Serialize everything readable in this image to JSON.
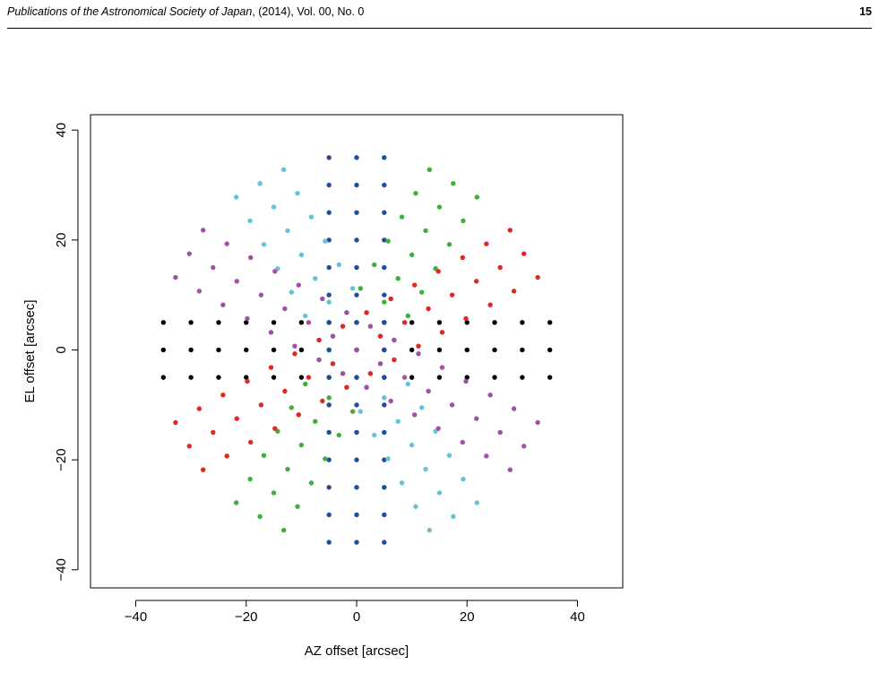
{
  "header": {
    "journal": "Publications of the Astronomical Society of Japan",
    "citation": ", (2014), Vol. 00, No. 0",
    "page": "15"
  },
  "chart_data": {
    "type": "scatter",
    "xlabel": "AZ offset [arcsec]",
    "ylabel": "EL offset [arcsec]",
    "xlim": [
      -48.2,
      48.2
    ],
    "ylim": [
      -43.3,
      42.8
    ],
    "xticks": [
      {
        "value": -40,
        "label": "−40"
      },
      {
        "value": -20,
        "label": "−20"
      },
      0,
      20,
      40
    ],
    "yticks": [
      {
        "value": -40,
        "label": "−40"
      },
      {
        "value": -20,
        "label": "−20"
      },
      0,
      20,
      40
    ],
    "series": [
      {
        "color": "#000000",
        "x": [
          -35,
          -30,
          -25,
          -20,
          -15,
          -10,
          -5,
          0,
          5,
          10,
          15,
          20,
          25,
          30,
          35,
          -35,
          -30,
          -25,
          -20,
          -15,
          -10,
          -5,
          0,
          5,
          10,
          15,
          20,
          25,
          30,
          35,
          -35,
          -30,
          -25,
          -20,
          -15,
          -10,
          -5,
          0,
          5,
          10,
          15,
          20,
          25,
          30,
          35
        ],
        "y": [
          0,
          0,
          0,
          0,
          0,
          0,
          0,
          0,
          0,
          0,
          0,
          0,
          0,
          0,
          0,
          -5,
          -5,
          -5,
          -5,
          -5,
          -5,
          -5,
          -5,
          -5,
          -5,
          -5,
          -5,
          -5,
          -5,
          -5,
          5,
          5,
          5,
          5,
          5,
          5,
          5,
          5,
          5,
          5,
          5,
          5,
          5,
          5,
          5
        ]
      },
      {
        "color": "#1f4e9a",
        "x": [
          0,
          0,
          0,
          0,
          0,
          0,
          0,
          0,
          0,
          0,
          0,
          0,
          0,
          0,
          0,
          5,
          5,
          5,
          5,
          5,
          5,
          5,
          5,
          5,
          5,
          5,
          5,
          5,
          5,
          5,
          -5,
          -5,
          -5,
          -5,
          -5,
          -5,
          -5,
          -5,
          -5,
          -5,
          -5,
          -5,
          -5,
          -5,
          -5
        ],
        "y": [
          -35,
          -30,
          -25,
          -20,
          -15,
          -10,
          -5,
          0,
          5,
          10,
          15,
          20,
          25,
          30,
          35,
          -35,
          -30,
          -25,
          -20,
          -15,
          -10,
          -5,
          0,
          5,
          10,
          15,
          20,
          25,
          30,
          35,
          -35,
          -30,
          -25,
          -20,
          -15,
          -10,
          -5,
          0,
          5,
          10,
          15,
          20,
          25,
          30,
          35
        ]
      },
      {
        "color": "#3fae3c",
        "x": [
          -17.5,
          -15,
          -12.5,
          -10,
          -7.5,
          -5,
          -2.5,
          0,
          2.5,
          5,
          7.5,
          10,
          12.5,
          15,
          17.5,
          -13.2,
          -10.7,
          -8.2,
          -5.7,
          -3.2,
          -0.7,
          1.8,
          4.3,
          6.8,
          9.3,
          11.8,
          14.3,
          16.8,
          19.3,
          21.8,
          -21.8,
          -19.3,
          -16.8,
          -14.3,
          -11.8,
          -9.3,
          -6.8,
          -4.3,
          -1.8,
          0.7,
          3.2,
          5.7,
          8.2,
          10.7,
          13.2
        ],
        "y": [
          -30.3,
          -26,
          -21.7,
          -17.3,
          -13,
          -8.7,
          -4.3,
          0,
          4.3,
          8.7,
          13,
          17.3,
          21.7,
          26,
          30.3,
          -32.8,
          -28.5,
          -24.2,
          -19.8,
          -15.5,
          -11.2,
          -6.8,
          -2.5,
          1.8,
          6.2,
          10.5,
          14.8,
          19.2,
          23.5,
          27.8,
          -27.8,
          -23.5,
          -19.2,
          -14.8,
          -10.5,
          -6.2,
          -1.8,
          2.5,
          6.8,
          11.2,
          15.5,
          19.8,
          24.2,
          28.5,
          32.8
        ]
      },
      {
        "color": "#66c2d8",
        "x": [
          17.5,
          15,
          12.5,
          10,
          7.5,
          5,
          2.5,
          0,
          -2.5,
          -5,
          -7.5,
          -10,
          -12.5,
          -15,
          -17.5,
          13.2,
          10.7,
          8.2,
          5.7,
          3.2,
          0.7,
          -1.8,
          -4.3,
          -6.8,
          -9.3,
          -11.8,
          -14.3,
          -16.8,
          -19.3,
          -21.8,
          21.8,
          19.3,
          16.8,
          14.3,
          11.8,
          9.3,
          6.8,
          4.3,
          1.8,
          -0.7,
          -3.2,
          -5.7,
          -8.2,
          -10.7,
          -13.2
        ],
        "y": [
          -30.3,
          -26,
          -21.7,
          -17.3,
          -13,
          -8.7,
          -4.3,
          0,
          4.3,
          8.7,
          13,
          17.3,
          21.7,
          26,
          30.3,
          -32.8,
          -28.5,
          -24.2,
          -19.8,
          -15.5,
          -11.2,
          -6.8,
          -2.5,
          1.8,
          6.2,
          10.5,
          14.8,
          19.2,
          23.5,
          27.8,
          -27.8,
          -23.5,
          -19.2,
          -14.8,
          -10.5,
          -6.2,
          -1.8,
          2.5,
          6.8,
          11.2,
          15.5,
          19.8,
          24.2,
          28.5,
          32.8
        ]
      },
      {
        "color": "#e0281f",
        "x": [
          -30.3,
          -26,
          -21.7,
          -17.3,
          -13,
          -8.7,
          -4.3,
          0,
          4.3,
          8.7,
          13,
          17.3,
          21.7,
          26,
          30.3,
          -27.8,
          -23.5,
          -19.2,
          -14.8,
          -10.5,
          -6.2,
          -1.8,
          2.5,
          6.8,
          11.2,
          15.5,
          19.8,
          24.2,
          28.5,
          32.8,
          -32.8,
          -28.5,
          -24.2,
          -19.8,
          -15.5,
          -11.2,
          -6.8,
          -2.5,
          1.8,
          6.2,
          10.5,
          14.8,
          19.2,
          23.5,
          27.8
        ],
        "y": [
          -17.5,
          -15,
          -12.5,
          -10,
          -7.5,
          -5,
          -2.5,
          0,
          2.5,
          5,
          7.5,
          10,
          12.5,
          15,
          17.5,
          -21.8,
          -19.3,
          -16.8,
          -14.3,
          -11.8,
          -9.3,
          -6.8,
          -4.3,
          -1.8,
          0.7,
          3.2,
          5.7,
          8.2,
          10.7,
          13.2,
          -13.2,
          -10.7,
          -8.2,
          -5.7,
          -3.2,
          -0.7,
          1.8,
          4.3,
          6.8,
          9.3,
          11.8,
          14.3,
          16.8,
          19.3,
          21.8
        ]
      },
      {
        "color": "#a24fa6",
        "x": [
          30.3,
          26,
          21.7,
          17.3,
          13,
          8.7,
          4.3,
          0,
          -4.3,
          -8.7,
          -13,
          -17.3,
          -21.7,
          -26,
          -30.3,
          27.8,
          23.5,
          19.2,
          14.8,
          10.5,
          6.2,
          1.8,
          -2.5,
          -6.8,
          -11.2,
          -15.5,
          -19.8,
          -24.2,
          -28.5,
          -32.8,
          32.8,
          28.5,
          24.2,
          19.8,
          15.5,
          11.2,
          6.8,
          2.5,
          -1.8,
          -6.2,
          -10.5,
          -14.8,
          -19.2,
          -23.5,
          -27.8
        ],
        "y": [
          -17.5,
          -15,
          -12.5,
          -10,
          -7.5,
          -5,
          -2.5,
          0,
          2.5,
          5,
          7.5,
          10,
          12.5,
          15,
          17.5,
          -21.8,
          -19.3,
          -16.8,
          -14.3,
          -11.8,
          -9.3,
          -6.8,
          -4.3,
          -1.8,
          0.7,
          3.2,
          5.7,
          8.2,
          10.7,
          13.2,
          -13.2,
          -10.7,
          -8.2,
          -5.7,
          -3.2,
          -0.7,
          1.8,
          4.3,
          6.8,
          9.3,
          11.8,
          14.3,
          16.8,
          19.3,
          21.8
        ]
      }
    ]
  }
}
